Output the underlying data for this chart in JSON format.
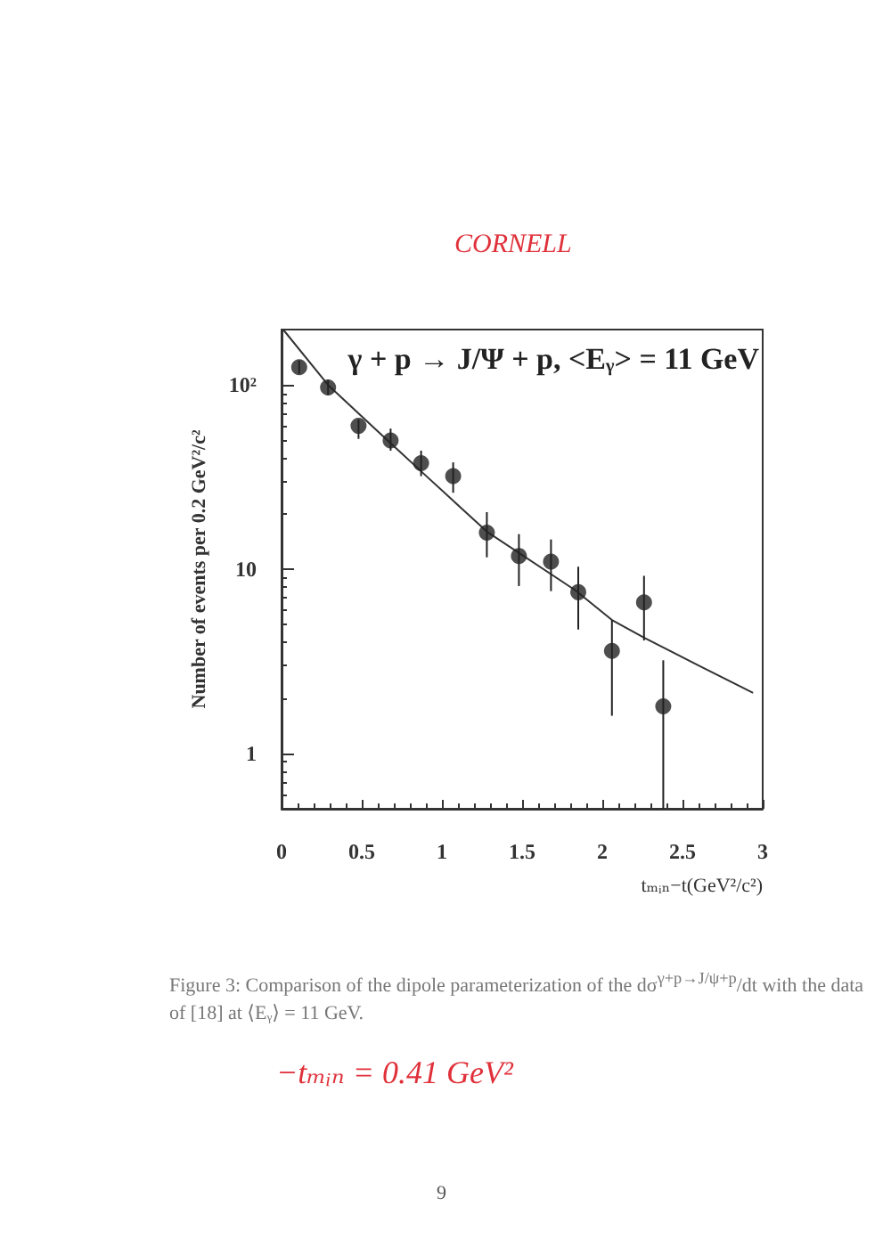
{
  "chart_data": {
    "type": "scatter",
    "title": "γ + p → J/Ψ + p, <Eᵧ> = 11 GeV",
    "xlabel": "tₘᵢₙ−t(GeV²/c²)",
    "ylabel": "Number of events per 0.2 GeV²/c²",
    "annotations": [
      "CORNELL",
      "Figure 3:  Comparison of the dipole parameterization of the dσ$^{γ+p→J/ψ+p}$/dt with the data of [18] at ⟨Eᵧ⟩ = 11 GeV.",
      "−tₘᵢₙ = 0.41 GeV²",
      "9"
    ],
    "log": "y",
    "xlim": [
      0,
      3
    ],
    "ylim": [
      0.5,
      200
    ],
    "xticks": [
      0,
      0.5,
      1,
      1.5,
      2,
      2.5,
      3
    ],
    "yticks": [
      1,
      10,
      {
        "value": 100,
        "label": "10²"
      }
    ],
    "series": [
      {
        "type": "scatter",
        "color": "#222222",
        "marker": "circle",
        "x": [
          0.11,
          0.29,
          0.48,
          0.68,
          0.87,
          1.07,
          1.28,
          1.48,
          1.68,
          1.85,
          2.06,
          2.26,
          2.38
        ],
        "values": [
          125,
          97,
          60,
          50,
          37.6,
          32,
          15.8,
          11.8,
          11,
          7.5,
          3.6,
          6.6,
          1.8
        ],
        "errors": [
          [
            115,
            136
          ],
          [
            88,
            107
          ],
          [
            51,
            65
          ],
          [
            44,
            58
          ],
          [
            32,
            44
          ],
          [
            26,
            38
          ],
          [
            11.6,
            20.4
          ],
          [
            8.1,
            15.5
          ],
          [
            7.6,
            14.5
          ],
          [
            4.7,
            10.3
          ],
          [
            1.6,
            5.3
          ],
          [
            4.1,
            9.2
          ],
          [
            0.5,
            3.2
          ]
        ]
      },
      {
        "type": "line",
        "color": "#333333",
        "line_style": "solid",
        "x": [
          0.01,
          0.29,
          0.6,
          0.87,
          1.28,
          1.83,
          2.06,
          2.26,
          2.6,
          2.94
        ],
        "values": [
          200,
          100,
          56,
          34,
          16,
          7.7,
          5.3,
          4.25,
          3.0,
          2.13
        ]
      }
    ]
  }
}
